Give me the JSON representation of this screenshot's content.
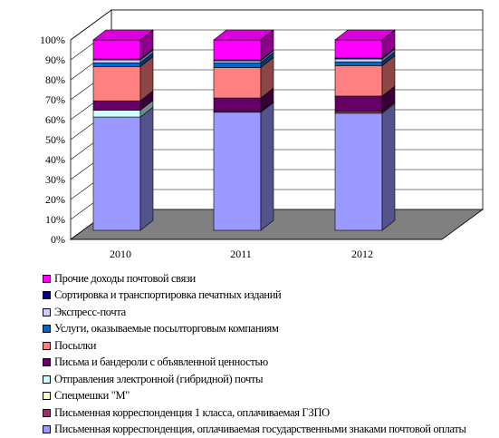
{
  "chart_data": {
    "type": "bar",
    "stacked": true,
    "three_d": true,
    "percent_stacked": true,
    "categories": [
      "2010",
      "2011",
      "2012"
    ],
    "y_ticks": [
      "0%",
      "10%",
      "20%",
      "30%",
      "40%",
      "50%",
      "60%",
      "70%",
      "80%",
      "90%",
      "100%"
    ],
    "ylim": [
      0,
      100
    ],
    "grid": true,
    "legend_position": "bottom",
    "series": [
      {
        "name": "Письменная корреспонденция, оплачиваемая государственными знаками почтовой оплаты",
        "color": "#9999ff",
        "values": [
          59.5,
          62,
          61.5
        ]
      },
      {
        "name": "Письменная корреспонденция 1 класса, оплачиваемая ГЗПО",
        "color": "#993366",
        "values": [
          0,
          0.5,
          1
        ]
      },
      {
        "name": "Спецмешки \"М\"",
        "color": "#ffffcc",
        "values": [
          0,
          0,
          0
        ]
      },
      {
        "name": "Отправления электронной (гибридной) почты",
        "color": "#ccffff",
        "values": [
          3.5,
          0,
          0
        ]
      },
      {
        "name": "Письма и бандероли с объявленной ценностью",
        "color": "#660066",
        "values": [
          5,
          7,
          8
        ]
      },
      {
        "name": "Посылки",
        "color": "#ff8080",
        "values": [
          18,
          16,
          16
        ]
      },
      {
        "name": "Услуги, оказываемые посылторговым компаниям",
        "color": "#0066cc",
        "values": [
          2,
          2.5,
          2
        ]
      },
      {
        "name": "Экспресс-почта",
        "color": "#ccccff",
        "values": [
          1.5,
          1,
          1.5
        ]
      },
      {
        "name": "Сортировка и транспортировка печатных изданий",
        "color": "#000080",
        "values": [
          0.5,
          0.5,
          0.5
        ]
      },
      {
        "name": "Прочие доходы почтовой связи",
        "color": "#ff00ff",
        "values": [
          10,
          10.5,
          9.5
        ]
      }
    ]
  }
}
